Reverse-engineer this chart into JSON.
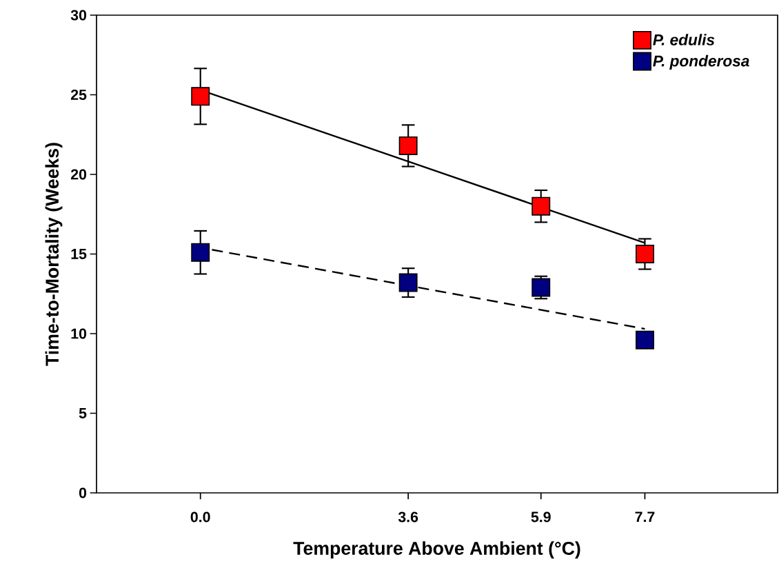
{
  "chart_data": {
    "type": "scatter",
    "xlabel": "Temperature Above Ambient (°C)",
    "ylabel": "Time-to-Mortality (Weeks)",
    "xlim": [
      -1.8,
      10
    ],
    "ylim": [
      0,
      30
    ],
    "xticks": [
      {
        "value": 0,
        "label": "0.0"
      },
      {
        "value": 3.6,
        "label": "3.6"
      },
      {
        "value": 5.9,
        "label": "5.9"
      },
      {
        "value": 7.7,
        "label": "7.7"
      }
    ],
    "yticks": [
      0,
      5,
      10,
      15,
      20,
      25,
      30
    ],
    "legend": "top right",
    "grid": false,
    "series": [
      {
        "name": "P. edulis",
        "marker": "square",
        "color": "#ff0000",
        "x": [
          0,
          3.6,
          5.9,
          7.7
        ],
        "values": [
          24.9,
          21.8,
          18.0,
          15.0
        ],
        "errors": [
          1.8,
          1.35,
          1.05,
          1.0
        ]
      },
      {
        "name": "P. ponderosa",
        "marker": "square",
        "color": "#000080",
        "x": [
          0,
          3.6,
          5.9,
          7.7
        ],
        "values": [
          15.1,
          13.2,
          12.9,
          9.6
        ],
        "errors": [
          1.4,
          0.95,
          0.75,
          null
        ]
      },
      {
        "type": "line",
        "marker": "none",
        "color": "#000000",
        "line_style": "solid",
        "x": [
          0,
          7.7
        ],
        "values": [
          25.3,
          15.7
        ]
      },
      {
        "type": "line",
        "marker": "none",
        "color": "#000000",
        "line_style": "dashed",
        "x": [
          0.2,
          7.7
        ],
        "values": [
          15.27,
          10.3
        ]
      }
    ]
  }
}
